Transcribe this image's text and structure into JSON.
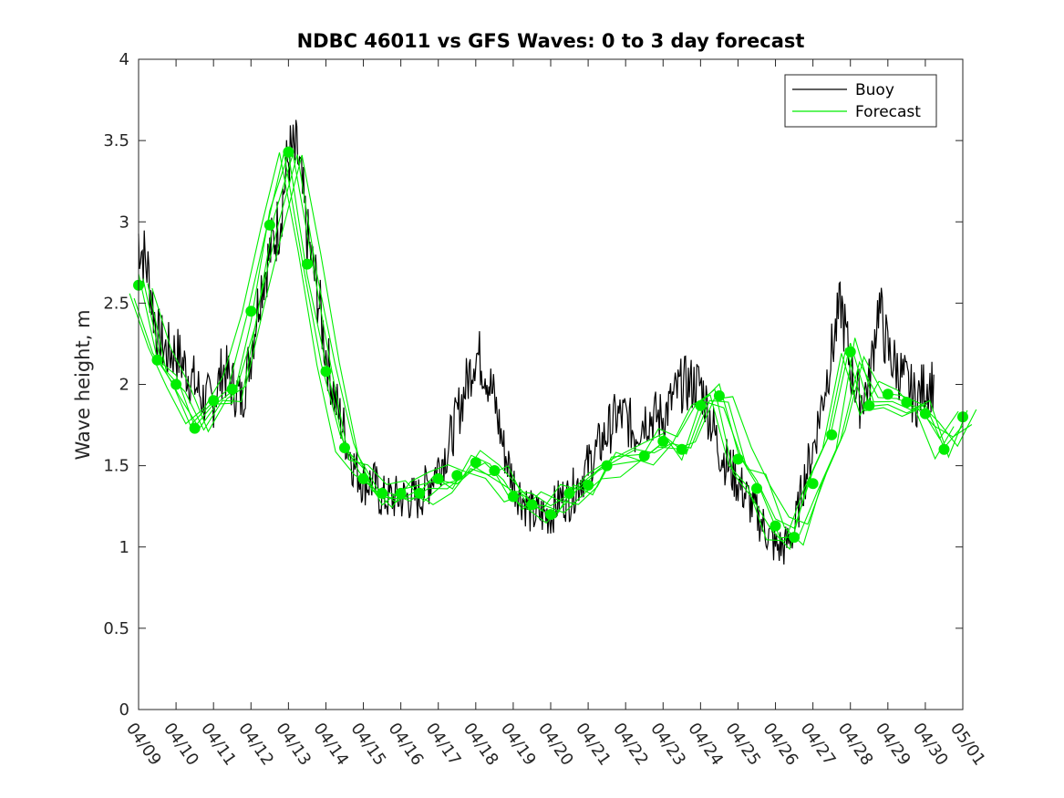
{
  "chart_data": {
    "type": "line",
    "title": "NDBC 46011 vs GFS Waves: 0 to 3 day forecast",
    "xlabel": "",
    "ylabel": "Wave height, m",
    "xlim": [
      "04/09",
      "05/01"
    ],
    "ylim": [
      0,
      4
    ],
    "x_ticks": [
      "04/09",
      "04/10",
      "04/11",
      "04/12",
      "04/13",
      "04/14",
      "04/15",
      "04/16",
      "04/17",
      "04/18",
      "04/19",
      "04/20",
      "04/21",
      "04/22",
      "04/23",
      "04/24",
      "04/25",
      "04/26",
      "04/27",
      "04/28",
      "04/29",
      "04/30",
      "05/01"
    ],
    "y_ticks": [
      "0",
      "0.5",
      "1",
      "1.5",
      "2",
      "2.5",
      "3",
      "3.5",
      "4"
    ],
    "grid": false,
    "legend_position": "top-right",
    "colors": {
      "buoy": "#000000",
      "forecast": "#00ee00"
    },
    "series": [
      {
        "name": "Buoy",
        "type": "line",
        "color": "#000000",
        "points": [
          [
            "04/09 00:00",
            2.9
          ],
          [
            "04/09 06:00",
            2.7
          ],
          [
            "04/09 12:00",
            2.3
          ],
          [
            "04/09 18:00",
            2.2
          ],
          [
            "04/10 00:00",
            2.2
          ],
          [
            "04/10 06:00",
            2.1
          ],
          [
            "04/10 12:00",
            2.0
          ],
          [
            "04/10 18:00",
            1.9
          ],
          [
            "04/11 00:00",
            1.9
          ],
          [
            "04/11 06:00",
            2.1
          ],
          [
            "04/11 12:00",
            2.0
          ],
          [
            "04/11 18:00",
            1.9
          ],
          [
            "04/12 00:00",
            2.2
          ],
          [
            "04/12 06:00",
            2.6
          ],
          [
            "04/12 12:00",
            2.8
          ],
          [
            "04/12 18:00",
            3.0
          ],
          [
            "04/13 00:00",
            3.4
          ],
          [
            "04/13 06:00",
            3.4
          ],
          [
            "04/13 12:00",
            2.9
          ],
          [
            "04/13 18:00",
            2.6
          ],
          [
            "04/14 00:00",
            2.2
          ],
          [
            "04/14 06:00",
            1.9
          ],
          [
            "04/14 12:00",
            1.7
          ],
          [
            "04/14 18:00",
            1.5
          ],
          [
            "04/15 00:00",
            1.4
          ],
          [
            "04/15 06:00",
            1.4
          ],
          [
            "04/15 12:00",
            1.3
          ],
          [
            "04/15 18:00",
            1.3
          ],
          [
            "04/16 00:00",
            1.3
          ],
          [
            "04/16 06:00",
            1.3
          ],
          [
            "04/16 12:00",
            1.3
          ],
          [
            "04/16 18:00",
            1.4
          ],
          [
            "04/17 00:00",
            1.5
          ],
          [
            "04/17 06:00",
            1.6
          ],
          [
            "04/17 12:00",
            1.8
          ],
          [
            "04/17 18:00",
            2.0
          ],
          [
            "04/18 00:00",
            2.2
          ],
          [
            "04/18 06:00",
            2.1
          ],
          [
            "04/18 12:00",
            1.9
          ],
          [
            "04/18 18:00",
            1.6
          ],
          [
            "04/19 00:00",
            1.4
          ],
          [
            "04/19 06:00",
            1.3
          ],
          [
            "04/19 12:00",
            1.2
          ],
          [
            "04/19 18:00",
            1.2
          ],
          [
            "04/20 00:00",
            1.2
          ],
          [
            "04/20 06:00",
            1.3
          ],
          [
            "04/20 12:00",
            1.3
          ],
          [
            "04/20 18:00",
            1.4
          ],
          [
            "04/21 00:00",
            1.5
          ],
          [
            "04/21 06:00",
            1.6
          ],
          [
            "04/21 12:00",
            1.7
          ],
          [
            "04/21 18:00",
            1.8
          ],
          [
            "04/22 00:00",
            1.8
          ],
          [
            "04/22 06:00",
            1.7
          ],
          [
            "04/22 12:00",
            1.8
          ],
          [
            "04/22 18:00",
            1.8
          ],
          [
            "04/23 00:00",
            1.8
          ],
          [
            "04/23 06:00",
            1.9
          ],
          [
            "04/23 12:00",
            2.0
          ],
          [
            "04/23 18:00",
            2.0
          ],
          [
            "04/24 00:00",
            2.0
          ],
          [
            "04/24 06:00",
            1.8
          ],
          [
            "04/24 12:00",
            1.6
          ],
          [
            "04/24 18:00",
            1.5
          ],
          [
            "04/25 00:00",
            1.4
          ],
          [
            "04/25 06:00",
            1.3
          ],
          [
            "04/25 12:00",
            1.2
          ],
          [
            "04/25 18:00",
            1.1
          ],
          [
            "04/26 00:00",
            1.0
          ],
          [
            "04/26 06:00",
            1.0
          ],
          [
            "04/26 12:00",
            1.1
          ],
          [
            "04/26 18:00",
            1.4
          ],
          [
            "04/27 00:00",
            1.6
          ],
          [
            "04/27 06:00",
            1.9
          ],
          [
            "04/27 12:00",
            2.2
          ],
          [
            "04/27 18:00",
            2.5
          ],
          [
            "04/28 00:00",
            2.1
          ],
          [
            "04/28 06:00",
            1.9
          ],
          [
            "04/28 12:00",
            2.0
          ],
          [
            "04/28 18:00",
            2.5
          ],
          [
            "04/29 00:00",
            2.2
          ],
          [
            "04/29 06:00",
            2.1
          ],
          [
            "04/29 12:00",
            2.0
          ],
          [
            "04/29 18:00",
            1.9
          ],
          [
            "04/30 00:00",
            2.0
          ],
          [
            "04/30 06:00",
            2.0
          ]
        ]
      },
      {
        "name": "Forecast",
        "type": "line",
        "color": "#00ee00",
        "points": [
          [
            "04/09 00:00",
            2.61
          ],
          [
            "04/09 12:00",
            2.15
          ],
          [
            "04/10 00:00",
            2.0
          ],
          [
            "04/10 12:00",
            1.73
          ],
          [
            "04/11 00:00",
            1.9
          ],
          [
            "04/11 12:00",
            1.97
          ],
          [
            "04/12 00:00",
            2.45
          ],
          [
            "04/12 12:00",
            2.98
          ],
          [
            "04/13 00:00",
            3.43
          ],
          [
            "04/13 12:00",
            2.74
          ],
          [
            "04/14 00:00",
            2.08
          ],
          [
            "04/14 12:00",
            1.61
          ],
          [
            "04/15 00:00",
            1.42
          ],
          [
            "04/15 12:00",
            1.33
          ],
          [
            "04/16 00:00",
            1.33
          ],
          [
            "04/16 12:00",
            1.33
          ],
          [
            "04/17 00:00",
            1.42
          ],
          [
            "04/17 12:00",
            1.44
          ],
          [
            "04/18 00:00",
            1.52
          ],
          [
            "04/18 12:00",
            1.47
          ],
          [
            "04/19 00:00",
            1.31
          ],
          [
            "04/19 12:00",
            1.26
          ],
          [
            "04/20 00:00",
            1.2
          ],
          [
            "04/20 12:00",
            1.33
          ],
          [
            "04/21 00:00",
            1.38
          ],
          [
            "04/21 12:00",
            1.5
          ],
          [
            "04/22 12:00",
            1.56
          ],
          [
            "04/23 00:00",
            1.65
          ],
          [
            "04/23 12:00",
            1.6
          ],
          [
            "04/24 00:00",
            1.87
          ],
          [
            "04/24 12:00",
            1.93
          ],
          [
            "04/25 00:00",
            1.54
          ],
          [
            "04/25 12:00",
            1.36
          ],
          [
            "04/26 00:00",
            1.13
          ],
          [
            "04/26 12:00",
            1.06
          ],
          [
            "04/27 00:00",
            1.39
          ],
          [
            "04/27 12:00",
            1.69
          ],
          [
            "04/28 00:00",
            2.2
          ],
          [
            "04/28 12:00",
            1.87
          ],
          [
            "04/29 00:00",
            1.94
          ],
          [
            "04/29 12:00",
            1.89
          ],
          [
            "04/30 00:00",
            1.82
          ],
          [
            "04/30 12:00",
            1.6
          ],
          [
            "05/01 00:00",
            1.8
          ]
        ]
      }
    ]
  }
}
